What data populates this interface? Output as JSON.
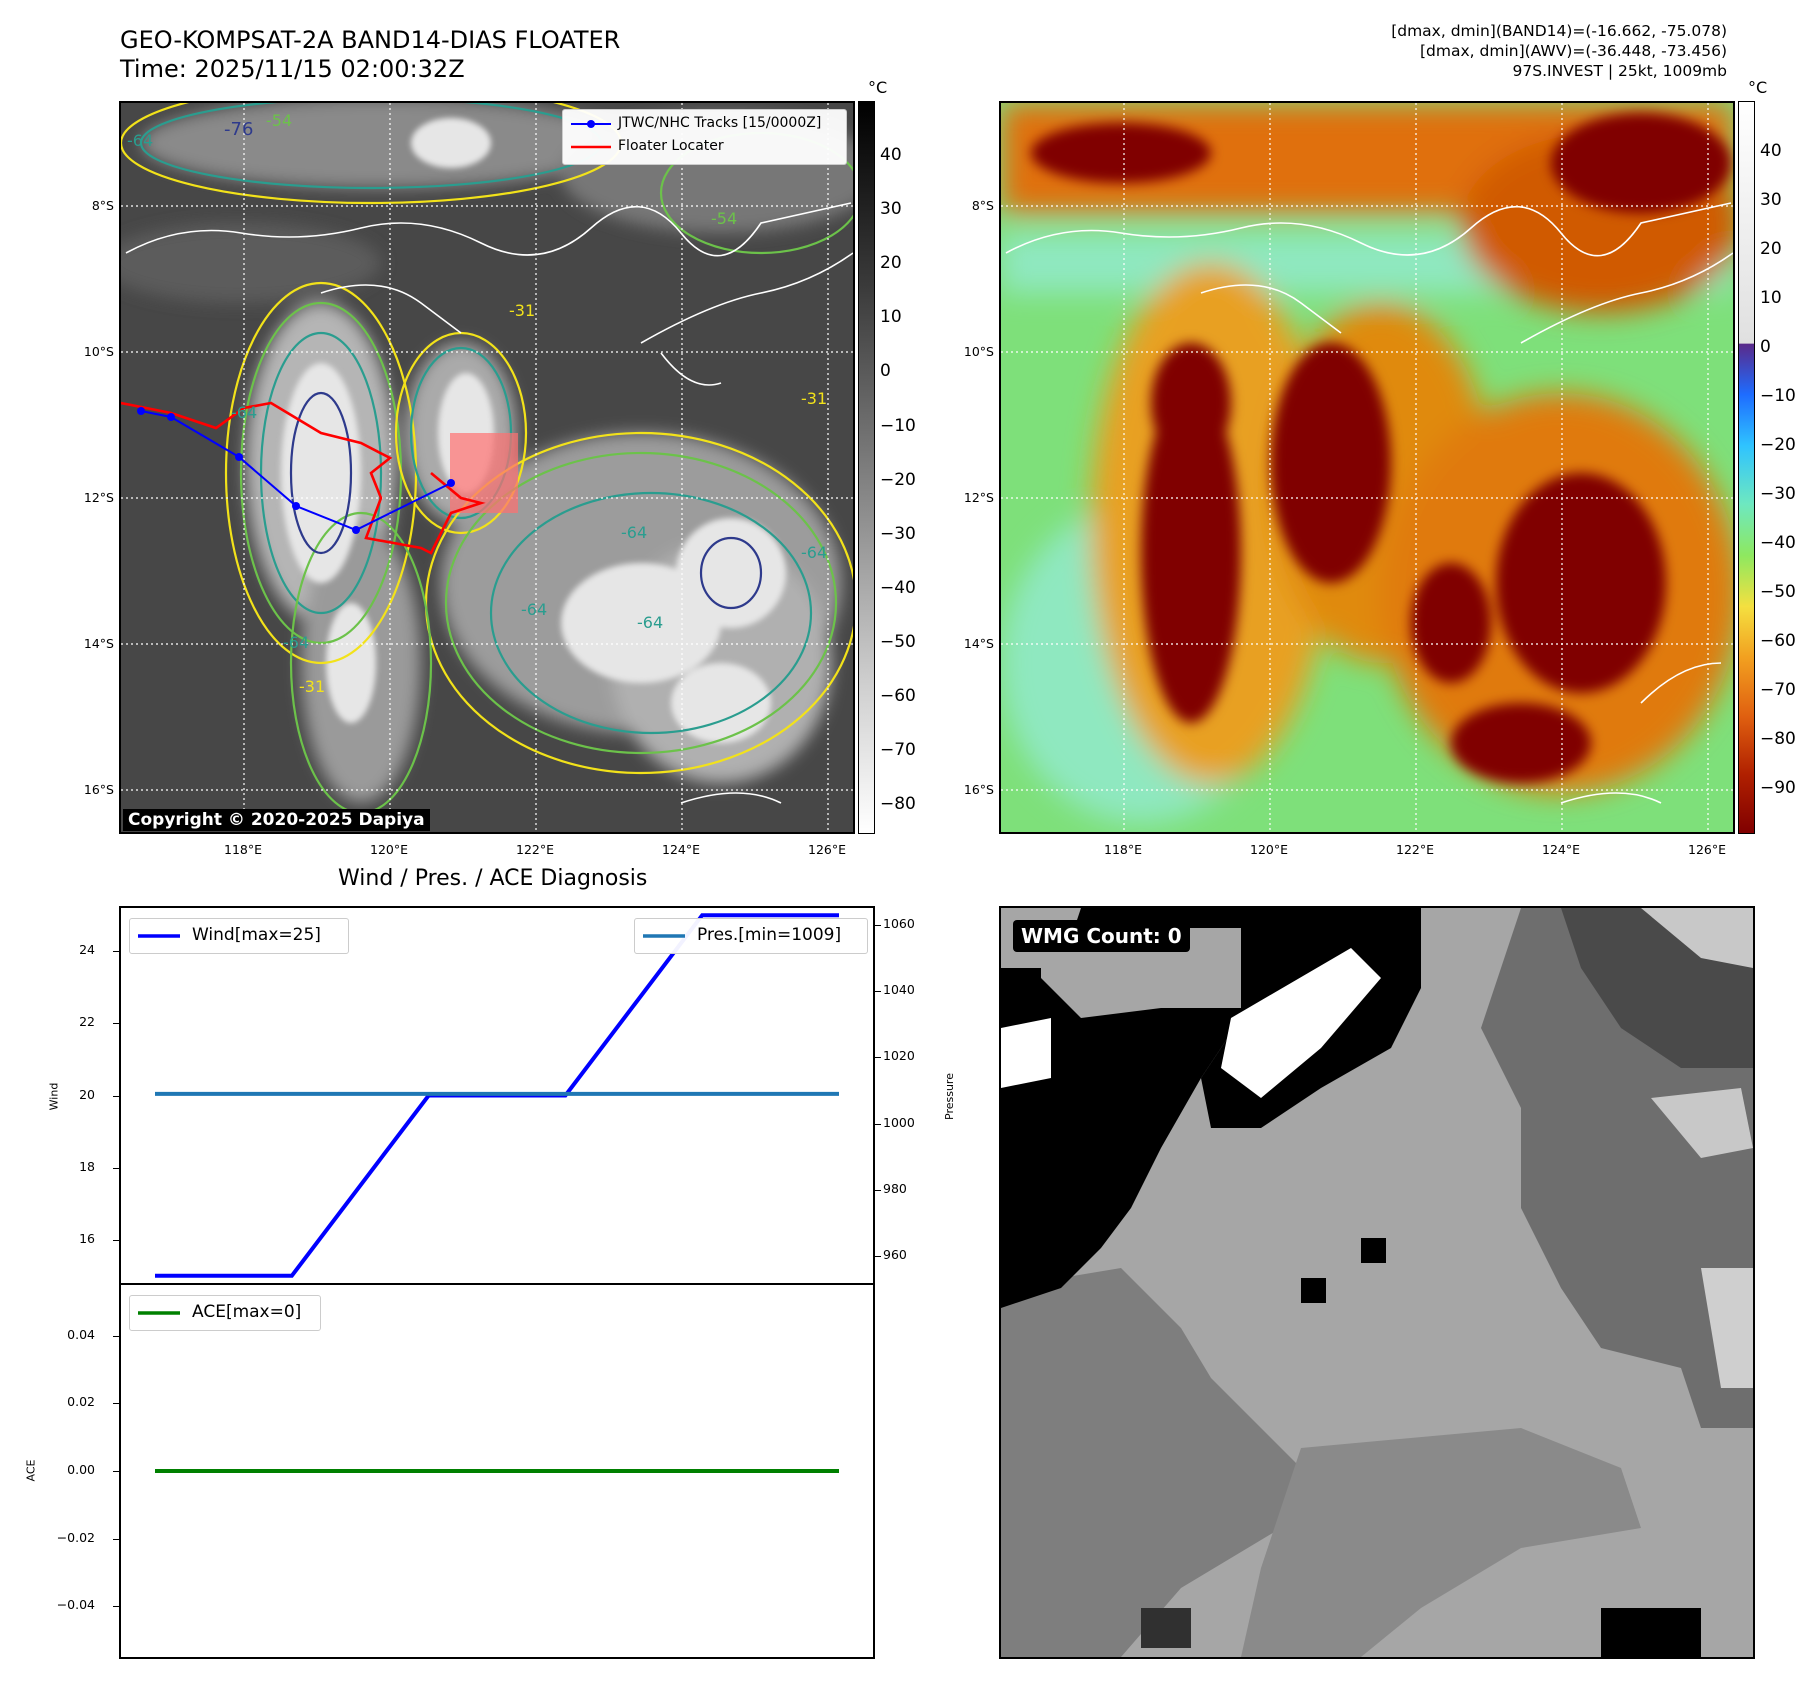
{
  "header": {
    "title_line1": "GEO-KOMPSAT-2A BAND14-DIAS FLOATER",
    "title_line2": "Time: 2025/11/15 02:00:32Z",
    "info_line1": "[dmax, dmin](BAND14)=(-16.662, -75.078)",
    "info_line2": "[dmax, dmin](AWV)=(-36.448, -73.456)",
    "info_line3": "97S.INVEST | 25kt, 1009mb"
  },
  "map_axes": {
    "lat_ticks": [
      "8°S",
      "10°S",
      "12°S",
      "14°S",
      "16°S"
    ],
    "lon_ticks": [
      "118°E",
      "120°E",
      "122°E",
      "124°E",
      "126°E"
    ]
  },
  "ir_panel": {
    "legend_track": "JTWC/NHC Tracks [15/0000Z]",
    "legend_floater": "Floater Locater",
    "copyright": "Copyright © 2020-2025 Dapiya",
    "contour_labels": [
      "-54",
      "-76",
      "-64",
      "-31",
      "-54",
      "-64",
      "-31",
      "-64",
      "-64",
      "-64",
      "-64",
      "-64",
      "-31"
    ],
    "colorbar_unit": "°C",
    "colorbar_ticks": [
      "40",
      "30",
      "20",
      "10",
      "0",
      "−10",
      "−20",
      "−30",
      "−40",
      "−50",
      "−60",
      "−70",
      "−80"
    ],
    "track_color": "#0000ff",
    "floater_color": "#ff0000"
  },
  "awv_panel": {
    "colorbar_unit": "°C",
    "colorbar_ticks": [
      "40",
      "30",
      "20",
      "10",
      "0",
      "−10",
      "−20",
      "−30",
      "−40",
      "−50",
      "−60",
      "−70",
      "−80",
      "−90"
    ]
  },
  "wmg_panel": {
    "label": "WMG Count: 0"
  },
  "chart_data": [
    {
      "type": "line",
      "title": "Wind / Pres. / ACE Diagnosis",
      "ylabel": "Wind",
      "ylabel_right": "Pressure",
      "x": [
        0,
        1,
        2,
        3,
        4,
        5
      ],
      "ylim": [
        14.8,
        25.2
      ],
      "yticks": [
        "24",
        "22",
        "20",
        "18",
        "16"
      ],
      "ylim_right": [
        952,
        1065
      ],
      "yticks_right": [
        "1060",
        "1040",
        "1020",
        "1000",
        "980",
        "960"
      ],
      "series": [
        {
          "name": "Wind[max=25]",
          "axis": "left",
          "color": "#0000ff",
          "values": [
            15,
            15,
            20,
            20,
            25,
            25
          ]
        },
        {
          "name": "Pres.[min=1009]",
          "axis": "right",
          "color": "#1f77b4",
          "values": [
            1009,
            1009,
            1009,
            1009,
            1009,
            1009
          ]
        }
      ],
      "legend": [
        "top-left",
        "top-right"
      ]
    },
    {
      "type": "line",
      "ylabel": "ACE",
      "x": [
        0,
        1,
        2,
        3,
        4,
        5
      ],
      "ylim": [
        -0.055,
        0.055
      ],
      "yticks": [
        "0.04",
        "0.02",
        "0.00",
        "−0.02",
        "−0.04"
      ],
      "series": [
        {
          "name": "ACE[max=0]",
          "color": "#008000",
          "values": [
            0,
            0,
            0,
            0,
            0,
            0
          ]
        }
      ],
      "legend": "top-left"
    }
  ]
}
